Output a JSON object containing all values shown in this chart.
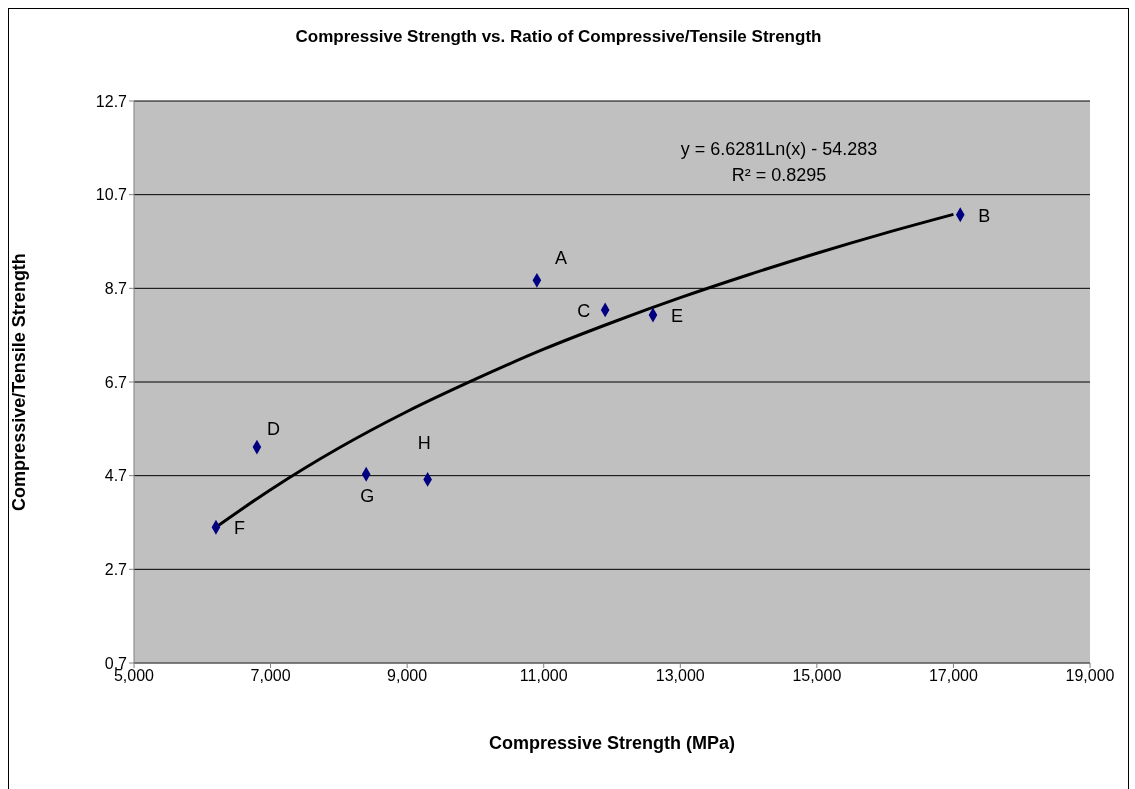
{
  "chart_data": {
    "type": "scatter",
    "title": "Compressive Strength vs. Ratio of Compressive/Tensile Strength",
    "xlabel": "Compressive Strength (MPa)",
    "ylabel": "Compressive/Tensile Strength",
    "x": [
      10900,
      17100,
      11900,
      12600,
      6800,
      6200,
      8400,
      9300
    ],
    "series": [
      {
        "color": "#000080",
        "marker": "diamond",
        "values": [
          8.87,
          10.27,
          8.24,
          8.13,
          5.31,
          3.6,
          4.73,
          4.62
        ]
      },
      {
        "type": "line",
        "color": "#000000",
        "marker": "none",
        "x": [
          6200,
          7000,
          8000,
          9000,
          10000,
          11000,
          12000,
          13000,
          14000,
          15000,
          16000,
          17000
        ],
        "values": [
          3.6,
          4.4,
          5.29,
          6.07,
          6.76,
          7.4,
          7.97,
          8.5,
          8.99,
          9.45,
          9.88,
          10.28
        ]
      }
    ],
    "xlim": [
      5000,
      19000
    ],
    "xticks": [
      {
        "value": 5000,
        "label": "5,000"
      },
      {
        "value": 7000,
        "label": "7,000"
      },
      {
        "value": 9000,
        "label": "9,000"
      },
      {
        "value": 11000,
        "label": "11,000"
      },
      {
        "value": 13000,
        "label": "13,000"
      },
      {
        "value": 15000,
        "label": "15,000"
      },
      {
        "value": 17000,
        "label": "17,000"
      },
      {
        "value": 19000,
        "label": "19,000"
      }
    ],
    "ylim": [
      0.7,
      12.7
    ],
    "yticks": [
      0.7,
      2.7,
      4.7,
      6.7,
      8.7,
      10.7,
      12.7
    ],
    "grid": "y",
    "annotations": [
      {
        "text": "A",
        "x": 10900,
        "y": 8.87
      },
      {
        "text": "B",
        "x": 17100,
        "y": 10.27
      },
      {
        "text": "C",
        "x": 11900,
        "y": 8.24
      },
      {
        "text": "E",
        "x": 12600,
        "y": 8.13
      },
      {
        "text": "D",
        "x": 6800,
        "y": 5.31
      },
      {
        "text": "F",
        "x": 6200,
        "y": 3.6
      },
      {
        "text": "G",
        "x": 8400,
        "y": 4.73
      },
      {
        "text": "H",
        "x": 9300,
        "y": 4.62
      },
      "y = 6.6281Ln(x) - 54.283",
      "R² = 0.8295"
    ]
  }
}
